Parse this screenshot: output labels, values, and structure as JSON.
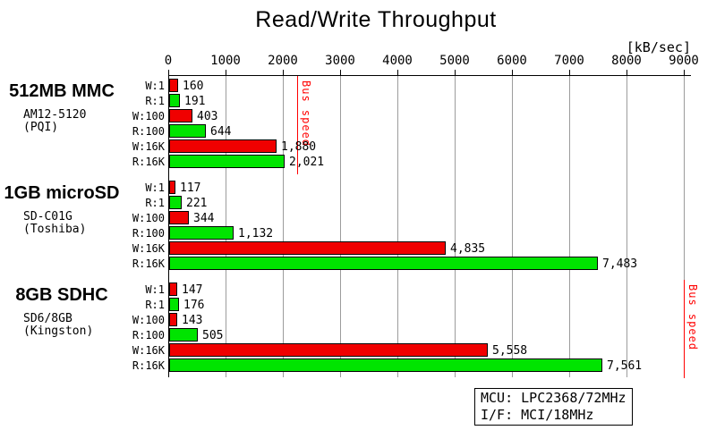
{
  "title": "Read/Write Throughput",
  "axis": {
    "unit_label": "[kB/sec]",
    "tick_labels": [
      "0",
      "1000",
      "2000",
      "3000",
      "4000",
      "5000",
      "6000",
      "7000",
      "8000",
      "9000"
    ]
  },
  "colors": {
    "write_bar": "#f00000",
    "read_bar": "#00e400",
    "grid": "#9c9c9c",
    "bus_line": "#ff0000",
    "text": "#000000"
  },
  "bus_speed_label": "Bus speed",
  "info_box": {
    "line1": "MCU: LPC2368/72MHz",
    "line2": "I/F: MCI/18MHz"
  },
  "chart_data": {
    "type": "bar",
    "orientation": "horizontal",
    "title": "Read/Write Throughput",
    "xlabel": "[kB/sec]",
    "xlim": [
      0,
      9000
    ],
    "grid": true,
    "row_categories": [
      "W:1",
      "R:1",
      "W:100",
      "R:100",
      "W:16K",
      "R:16K"
    ],
    "row_series": [
      "write",
      "read",
      "write",
      "read",
      "write",
      "read"
    ],
    "groups": [
      {
        "name": "512MB MMC",
        "model": "AM12-5120",
        "vendor": "(PQI)",
        "values": [
          160,
          191,
          403,
          644,
          1880,
          2021
        ],
        "value_labels": [
          "160",
          "191",
          "403",
          "644",
          "1,880",
          "2,021"
        ],
        "bus_speed": 2250
      },
      {
        "name": "1GB microSD",
        "model": "SD-C01G",
        "vendor": "(Toshiba)",
        "values": [
          117,
          221,
          344,
          1132,
          4835,
          7483
        ],
        "value_labels": [
          "117",
          "221",
          "344",
          "1,132",
          "4,835",
          "7,483"
        ],
        "bus_speed": null
      },
      {
        "name": "8GB SDHC",
        "model": "SD6/8GB",
        "vendor": "(Kingston)",
        "values": [
          147,
          176,
          143,
          505,
          5558,
          7561
        ],
        "value_labels": [
          "147",
          "176",
          "143",
          "505",
          "5,558",
          "7,561"
        ],
        "bus_speed": 9000
      }
    ]
  }
}
